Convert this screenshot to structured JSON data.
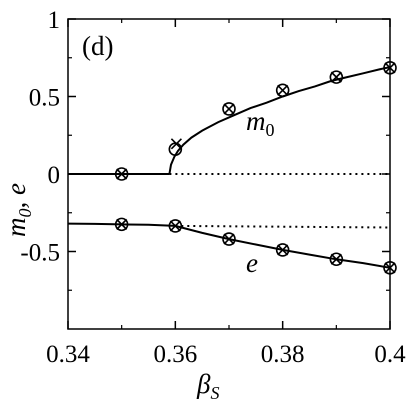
{
  "chart_data": {
    "type": "line",
    "panel_label": "(d)",
    "xlabel_main": "β",
    "xlabel_sub": "S",
    "ylabel_m": "m",
    "ylabel_m_sub": "0",
    "ylabel_rest": ", e",
    "xlim": [
      0.34,
      0.4
    ],
    "ylim": [
      -1.0,
      1.0
    ],
    "xticks": [
      "0.34",
      "0.36",
      "0.38",
      "0.4"
    ],
    "xtick_values": [
      0.34,
      0.36,
      0.38,
      0.4
    ],
    "yticks": [
      "1",
      "0.5",
      "0",
      "-0.5"
    ],
    "ytick_values": [
      1.0,
      0.5,
      0.0,
      -0.5
    ],
    "annotations": [
      {
        "text": "m",
        "sub": "0",
        "x": 0.373,
        "y": 0.33
      },
      {
        "text": "e",
        "sub": "",
        "x": 0.3775,
        "y": -0.57
      }
    ],
    "series": [
      {
        "kind": "solid-line",
        "x": [
          0.34,
          0.3589
        ],
        "y": [
          0.0,
          0.0
        ]
      },
      {
        "kind": "solid-line",
        "x": [
          0.3589,
          0.3592,
          0.3598,
          0.3605,
          0.3615,
          0.363,
          0.365,
          0.368,
          0.371,
          0.374,
          0.377,
          0.38,
          0.383,
          0.386,
          0.389,
          0.392,
          0.395,
          0.398,
          0.4
        ],
        "y": [
          0.0,
          0.06,
          0.11,
          0.15,
          0.19,
          0.235,
          0.28,
          0.335,
          0.38,
          0.425,
          0.46,
          0.5,
          0.535,
          0.565,
          0.6,
          0.625,
          0.65,
          0.675,
          0.69
        ]
      },
      {
        "kind": "dotted-line",
        "x": [
          0.3589,
          0.4
        ],
        "y": [
          0.0,
          0.0
        ]
      },
      {
        "kind": "solid-line",
        "x": [
          0.34,
          0.345,
          0.35,
          0.355,
          0.36,
          0.365,
          0.37,
          0.375,
          0.38,
          0.385,
          0.39,
          0.395,
          0.4
        ],
        "y": [
          -0.32,
          -0.322,
          -0.325,
          -0.328,
          -0.335,
          -0.38,
          -0.42,
          -0.455,
          -0.49,
          -0.52,
          -0.55,
          -0.575,
          -0.605
        ]
      },
      {
        "kind": "dotted-line",
        "x": [
          0.36,
          0.4
        ],
        "y": [
          -0.335,
          -0.345
        ]
      },
      {
        "kind": "circle-markers",
        "x": [
          0.35,
          0.36,
          0.37,
          0.38,
          0.39,
          0.4,
          0.35,
          0.36,
          0.37,
          0.38,
          0.39,
          0.4
        ],
        "y": [
          0.0,
          0.16,
          0.42,
          0.54,
          0.625,
          0.685,
          -0.325,
          -0.335,
          -0.42,
          -0.49,
          -0.55,
          -0.605
        ]
      },
      {
        "kind": "x-markers",
        "x": [
          0.35,
          0.3602,
          0.37,
          0.38,
          0.39,
          0.4,
          0.35,
          0.36,
          0.37,
          0.38,
          0.39,
          0.4
        ],
        "y": [
          0.0,
          0.195,
          0.42,
          0.54,
          0.625,
          0.685,
          -0.325,
          -0.335,
          -0.42,
          -0.49,
          -0.55,
          -0.605
        ]
      }
    ]
  }
}
